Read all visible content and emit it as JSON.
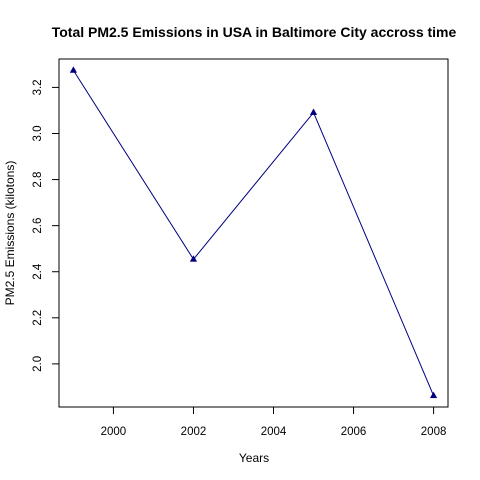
{
  "chart_data": {
    "type": "line",
    "title": "Total PM2.5 Emissions in USA in Baltimore City accross time",
    "xlabel": "Years",
    "ylabel": "PM2.5 Emissions (kilotons)",
    "x": [
      1999,
      2002,
      2005,
      2008
    ],
    "series": [
      {
        "values": [
          3.274,
          2.454,
          3.091,
          1.862
        ]
      }
    ],
    "xlim": [
      1998.64,
      2008.36
    ],
    "ylim": [
      1.8129,
      3.3233
    ],
    "xticks": [
      2000,
      2002,
      2004,
      2006,
      2008
    ],
    "xtick_labels": [
      "2000",
      "2002",
      "2004",
      "2006",
      "2008"
    ],
    "yticks": [
      2.0,
      2.2,
      2.4,
      2.6,
      2.8,
      3.0,
      3.2
    ],
    "ytick_labels": [
      "2.0",
      "2.2",
      "2.4",
      "2.6",
      "2.8",
      "3.0",
      "3.2"
    ],
    "grid": false,
    "colors": {
      "line": "#00007f",
      "marker": "#00007f",
      "axis": "#000000"
    }
  }
}
